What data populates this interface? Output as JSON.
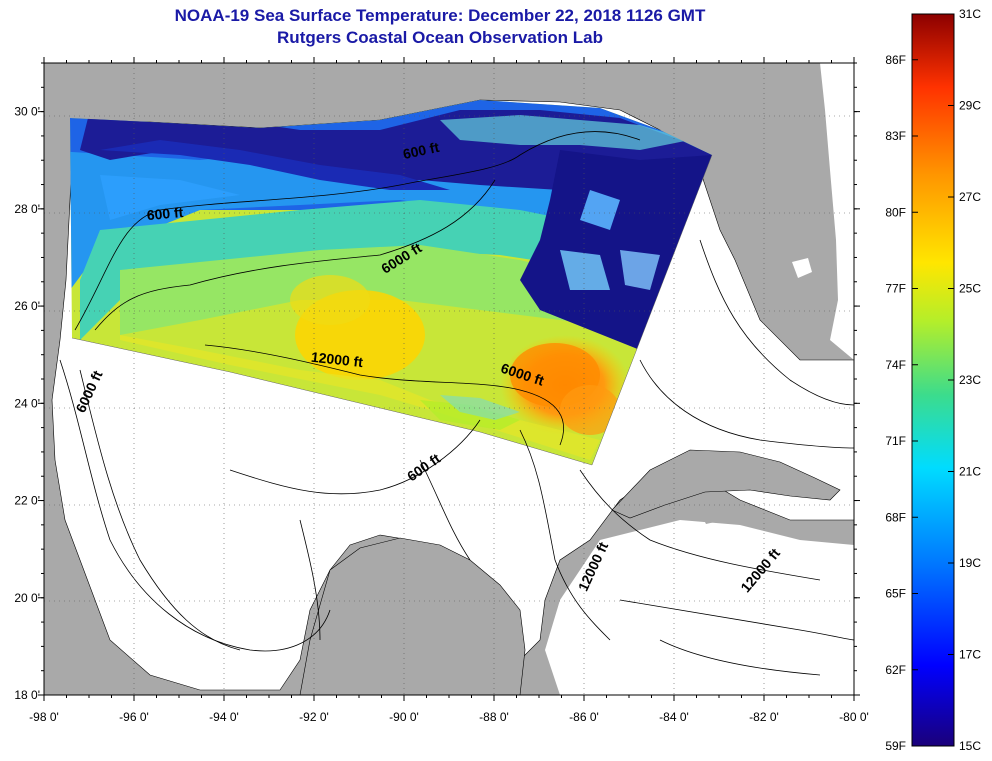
{
  "title": {
    "line1": "NOAA-19 Sea Surface Temperature:  December 22, 2018 1126 GMT",
    "line2": "Rutgers Coastal Ocean Observation Lab"
  },
  "axes": {
    "longitude_ticks": [
      "-98 0'",
      "-96 0'",
      "-94 0'",
      "-92 0'",
      "-90 0'",
      "-88 0'",
      "-86 0'",
      "-84 0'",
      "-82 0'",
      "-80 0'"
    ],
    "latitude_ticks": [
      "30 0'",
      "28 0'",
      "26 0'",
      "24 0'",
      "22 0'",
      "20 0'",
      "18 0'"
    ],
    "lon_range": [
      -98,
      -80
    ],
    "lat_range": [
      18,
      31
    ]
  },
  "contour_labels": [
    {
      "text": "600 ft",
      "lon": -89.6,
      "lat": 29.1,
      "rotate": -12
    },
    {
      "text": "600 ft",
      "lon": -95.3,
      "lat": 27.8,
      "rotate": -5
    },
    {
      "text": "6000 ft",
      "lon": -90.0,
      "lat": 26.9,
      "rotate": -32
    },
    {
      "text": "12000 ft",
      "lon": -91.5,
      "lat": 24.8,
      "rotate": 6
    },
    {
      "text": "6000 ft",
      "lon": -87.4,
      "lat": 24.5,
      "rotate": 18
    },
    {
      "text": "6000 ft",
      "lon": -96.9,
      "lat": 24.2,
      "rotate": -65
    },
    {
      "text": "600 ft",
      "lon": -89.5,
      "lat": 22.6,
      "rotate": -35
    },
    {
      "text": "12000 ft",
      "lon": -85.7,
      "lat": 20.6,
      "rotate": -65
    },
    {
      "text": "12000 ft",
      "lon": -82.0,
      "lat": 20.5,
      "rotate": -50
    }
  ],
  "colorbar": {
    "fahrenheit": [
      "86F",
      "83F",
      "80F",
      "77F",
      "74F",
      "71F",
      "68F",
      "65F",
      "62F",
      "59F"
    ],
    "celsius": [
      "31C",
      "29C",
      "27C",
      "25C",
      "23C",
      "21C",
      "19C",
      "17C",
      "15C"
    ],
    "range_c": [
      15,
      31
    ],
    "colors": [
      "#1a007a",
      "#0000ff",
      "#0078ff",
      "#00dcff",
      "#3cdc8c",
      "#b4ee2a",
      "#ffe600",
      "#ff9600",
      "#ff3200",
      "#8c0000"
    ]
  },
  "colors": {
    "land": "#a9a9a9",
    "title": "#1a1aa6"
  }
}
